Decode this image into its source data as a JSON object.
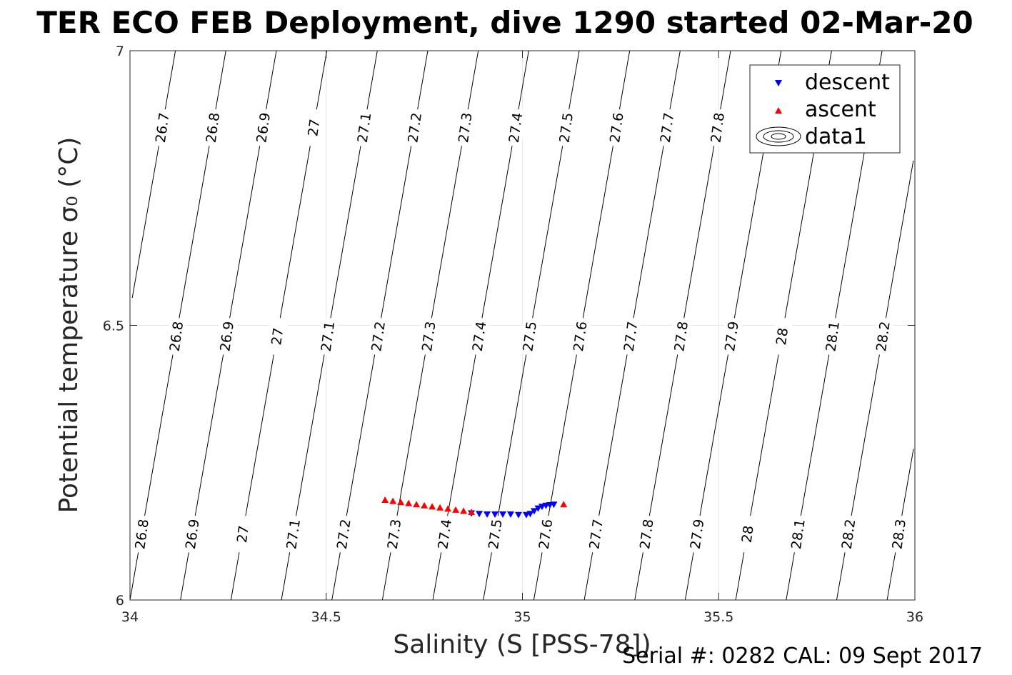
{
  "chart_data": {
    "type": "scatter",
    "title": "TER ECO FEB Deployment, dive 1290 started 02-Mar-20",
    "xlabel": "Salinity (S [PSS-78])",
    "ylabel": "Potential temperature σ₀ (°C)",
    "xlim": [
      34,
      36
    ],
    "ylim": [
      6,
      7
    ],
    "xticks": [
      "34",
      "34.5",
      "35",
      "35.5",
      "36"
    ],
    "yticks": [
      "6",
      "6.5",
      "7"
    ],
    "grid": true,
    "legend_position": "top-right",
    "contour_levels": [
      "26.7",
      "26.8",
      "26.9",
      "27",
      "27.1",
      "27.2",
      "27.3",
      "27.4",
      "27.5",
      "27.6",
      "27.7",
      "27.8",
      "27.9",
      "28",
      "28.1",
      "28.2",
      "28.3"
    ],
    "series": [
      {
        "name": "descent",
        "marker": "triangle-down",
        "color": "#0000ff",
        "x": [
          34.87,
          34.89,
          34.91,
          34.93,
          34.95,
          34.97,
          34.99,
          35.01,
          35.02,
          35.03,
          35.04,
          35.05,
          35.06,
          35.07,
          35.08
        ],
        "y": [
          6.158,
          6.157,
          6.156,
          6.156,
          6.156,
          6.156,
          6.155,
          6.155,
          6.157,
          6.162,
          6.167,
          6.17,
          6.172,
          6.173,
          6.174
        ]
      },
      {
        "name": "ascent",
        "marker": "triangle-up",
        "color": "#ff0000",
        "x": [
          34.65,
          34.67,
          34.69,
          34.71,
          34.73,
          34.75,
          34.77,
          34.79,
          34.81,
          34.83,
          34.85,
          34.87,
          35.105
        ],
        "y": [
          6.182,
          6.18,
          6.178,
          6.176,
          6.174,
          6.172,
          6.17,
          6.168,
          6.166,
          6.164,
          6.162,
          6.16,
          6.174
        ]
      },
      {
        "name": "data1",
        "marker": "contour",
        "color": "#000000"
      }
    ]
  },
  "footer": {
    "serial": "Serial #: 0282  CAL: 09 Sept 2017"
  }
}
